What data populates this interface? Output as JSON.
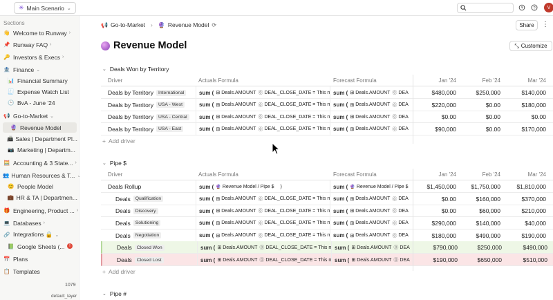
{
  "topbar": {
    "scenario": "Main Scenario",
    "avatar": "V"
  },
  "sidebar": {
    "section_label": "Sections",
    "items": [
      {
        "emoji": "👋",
        "label": "Welcome to Runway",
        "chev": "›"
      },
      {
        "emoji": "📌",
        "label": "Runway FAQ",
        "chev": "›"
      },
      {
        "emoji": "🔑",
        "label": "Investors & Execs",
        "chev": "›"
      },
      {
        "emoji": "🏦",
        "label": "Finance",
        "chev": "⌄"
      },
      {
        "emoji": "📊",
        "label": "Financial Summary",
        "chev": ""
      },
      {
        "emoji": "🧾",
        "label": "Expense Watch List",
        "chev": ""
      },
      {
        "emoji": "🕒",
        "label": "BvA - June '24",
        "chev": ""
      },
      {
        "emoji": "📢",
        "label": "Go-to-Market",
        "chev": "⌄"
      },
      {
        "emoji": "🔮",
        "label": "Revenue Model",
        "chev": ""
      },
      {
        "emoji": "📠",
        "label": "Sales | Department Pl...",
        "chev": ""
      },
      {
        "emoji": "📷",
        "label": "Marketing | Departm...",
        "chev": ""
      },
      {
        "emoji": "🧮",
        "label": "Accounting & 3 State...",
        "chev": "›"
      },
      {
        "emoji": "👥",
        "label": "Human Resources & T...",
        "chev": "⌄"
      },
      {
        "emoji": "😊",
        "label": "People Model",
        "chev": ""
      },
      {
        "emoji": "💼",
        "label": "HR & TA | Departmen...",
        "chev": ""
      },
      {
        "emoji": "🎁",
        "label": "Engineering, Product ...",
        "chev": "›"
      },
      {
        "emoji": "💻",
        "label": "Databases",
        "chev": "›"
      },
      {
        "emoji": "🔗",
        "label": "Integrations 🔒",
        "chev": "⌄"
      },
      {
        "emoji": "📗",
        "label": "Google Sheets (...",
        "chev": ""
      },
      {
        "emoji": "📅",
        "label": "Plans",
        "chev": ""
      },
      {
        "emoji": "📋",
        "label": "Templates",
        "chev": ""
      }
    ],
    "badge": "!",
    "count": "1079",
    "layer": "default_layer"
  },
  "header": {
    "breadcrumb_parent": "Go-to-Market",
    "breadcrumb_current": "Revenue Model",
    "share_label": "Share",
    "page_title": "Revenue Model",
    "customize_label": "Customize"
  },
  "table_headers": {
    "driver": "Driver",
    "actuals": "Actuals Formula",
    "forecast": "Forecast Formula",
    "months": [
      "Jan '24",
      "Feb '24",
      "Mar '24"
    ]
  },
  "formula": {
    "sum": "sum (",
    "amount": "Deals.AMOUNT",
    "close": "DEAL_CLOSE_DATE = This m",
    "close_short": "DEA",
    "rollup": "Revenue Model / Pipe $",
    "rollup_close": ")"
  },
  "section1": {
    "title": "Deals Won by Territory",
    "add_label": "Add driver",
    "rows": [
      {
        "name": "Deals by Territory",
        "tag": "International",
        "v": [
          "$480,000",
          "$250,000",
          "$140,000"
        ]
      },
      {
        "name": "Deals by Territory",
        "tag": "USA - West",
        "v": [
          "$220,000",
          "$0.00",
          "$180,000"
        ]
      },
      {
        "name": "Deals by Territory",
        "tag": "USA - Central",
        "v": [
          "$0.00",
          "$0.00",
          "$0.00"
        ]
      },
      {
        "name": "Deals by Territory",
        "tag": "USA - East",
        "v": [
          "$90,000",
          "$0.00",
          "$170,000"
        ]
      }
    ]
  },
  "section2": {
    "title": "Pipe $",
    "add_label": "Add driver",
    "rollup": {
      "name": "Deals Rollup",
      "v": [
        "$1,450,000",
        "$1,750,000",
        "$1,810,000"
      ]
    },
    "rows": [
      {
        "name": "Deals",
        "tag": "Qualification",
        "v": [
          "$0.00",
          "$160,000",
          "$370,000"
        ]
      },
      {
        "name": "Deals",
        "tag": "Discovery",
        "v": [
          "$0.00",
          "$60,000",
          "$210,000"
        ]
      },
      {
        "name": "Deals",
        "tag": "Solutioning",
        "v": [
          "$290,000",
          "$140,000",
          "$40,000"
        ]
      },
      {
        "name": "Deals",
        "tag": "Negotiation",
        "v": [
          "$180,000",
          "$490,000",
          "$190,000"
        ]
      },
      {
        "name": "Deals",
        "tag": "Closed Won",
        "v": [
          "$790,000",
          "$250,000",
          "$490,000"
        ]
      },
      {
        "name": "Deals",
        "tag": "Closed Lost",
        "v": [
          "$190,000",
          "$650,000",
          "$510,000"
        ]
      }
    ]
  },
  "section3": {
    "title": "Pipe #"
  }
}
